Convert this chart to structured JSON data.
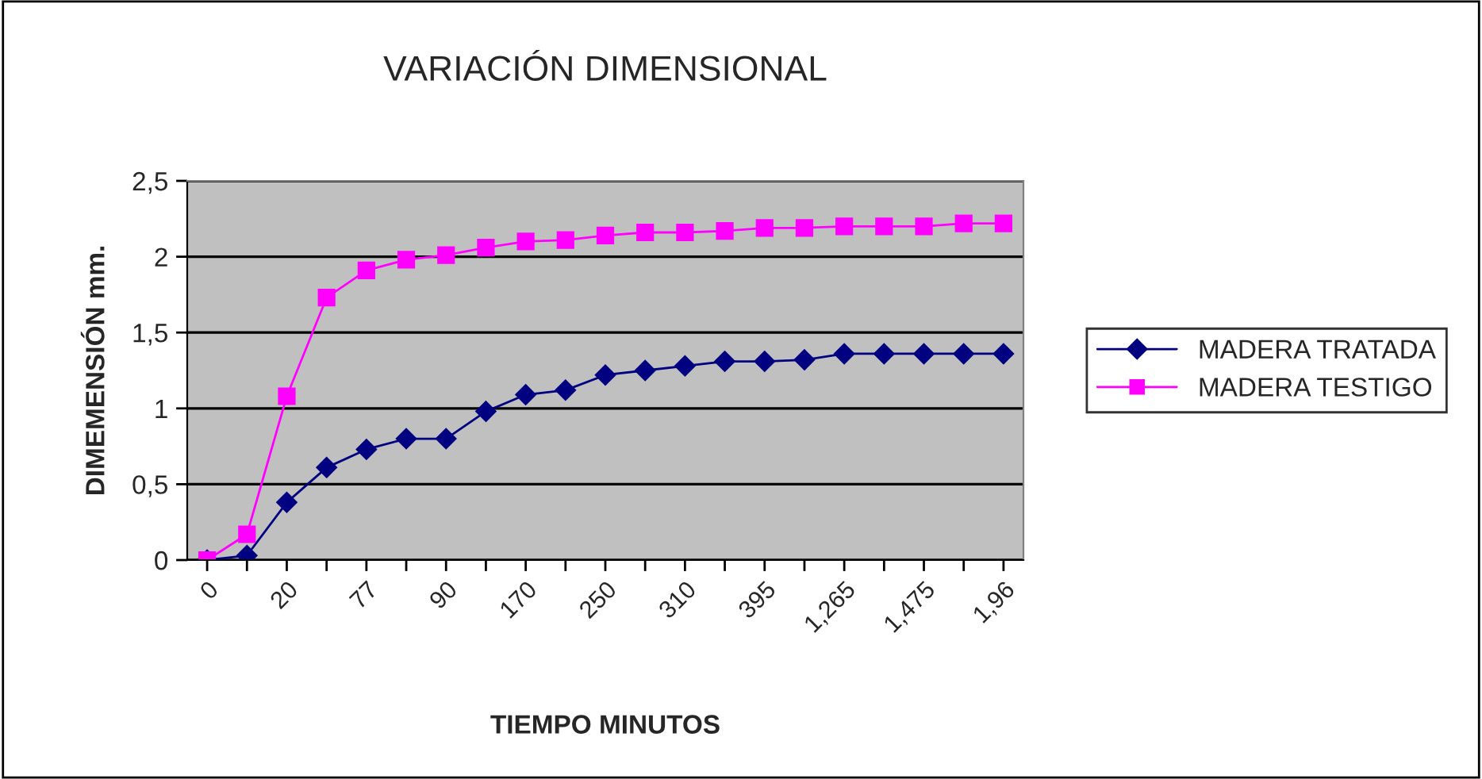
{
  "chart_data": {
    "type": "line",
    "title": "VARIACIÓN DIMENSIONAL",
    "xlabel": "TIEMPO MINUTOS",
    "ylabel": "DIMEMENSIÓN mm.",
    "categories": [
      "0",
      null,
      "20",
      null,
      "77",
      null,
      "90",
      null,
      "170",
      null,
      "250",
      null,
      "310",
      null,
      "395",
      null,
      "1,265",
      null,
      "1,475",
      null,
      "1,96"
    ],
    "series": [
      {
        "name": "MADERA TRATADA",
        "color": "#000080",
        "marker": "diamond",
        "values": [
          0,
          0.03,
          0.38,
          0.61,
          0.73,
          0.8,
          0.8,
          0.98,
          1.09,
          1.12,
          1.22,
          1.25,
          1.28,
          1.31,
          1.31,
          1.32,
          1.36,
          1.36,
          1.36,
          1.36,
          1.36
        ]
      },
      {
        "name": "MADERA TESTIGO",
        "color": "#ff00ff",
        "marker": "square",
        "values": [
          0,
          0.17,
          1.08,
          1.73,
          1.91,
          1.98,
          2.01,
          2.06,
          2.1,
          2.11,
          2.14,
          2.16,
          2.16,
          2.17,
          2.19,
          2.19,
          2.2,
          2.2,
          2.2,
          2.22,
          2.22
        ]
      }
    ],
    "ylim": [
      0,
      2.5
    ],
    "yticks": [
      0,
      {
        "value": 0.5,
        "label": "0,5"
      },
      1,
      {
        "value": 1.5,
        "label": "1,5"
      },
      2,
      {
        "value": 2.5,
        "label": "2,5"
      }
    ],
    "grid": "y",
    "legend": "right"
  }
}
